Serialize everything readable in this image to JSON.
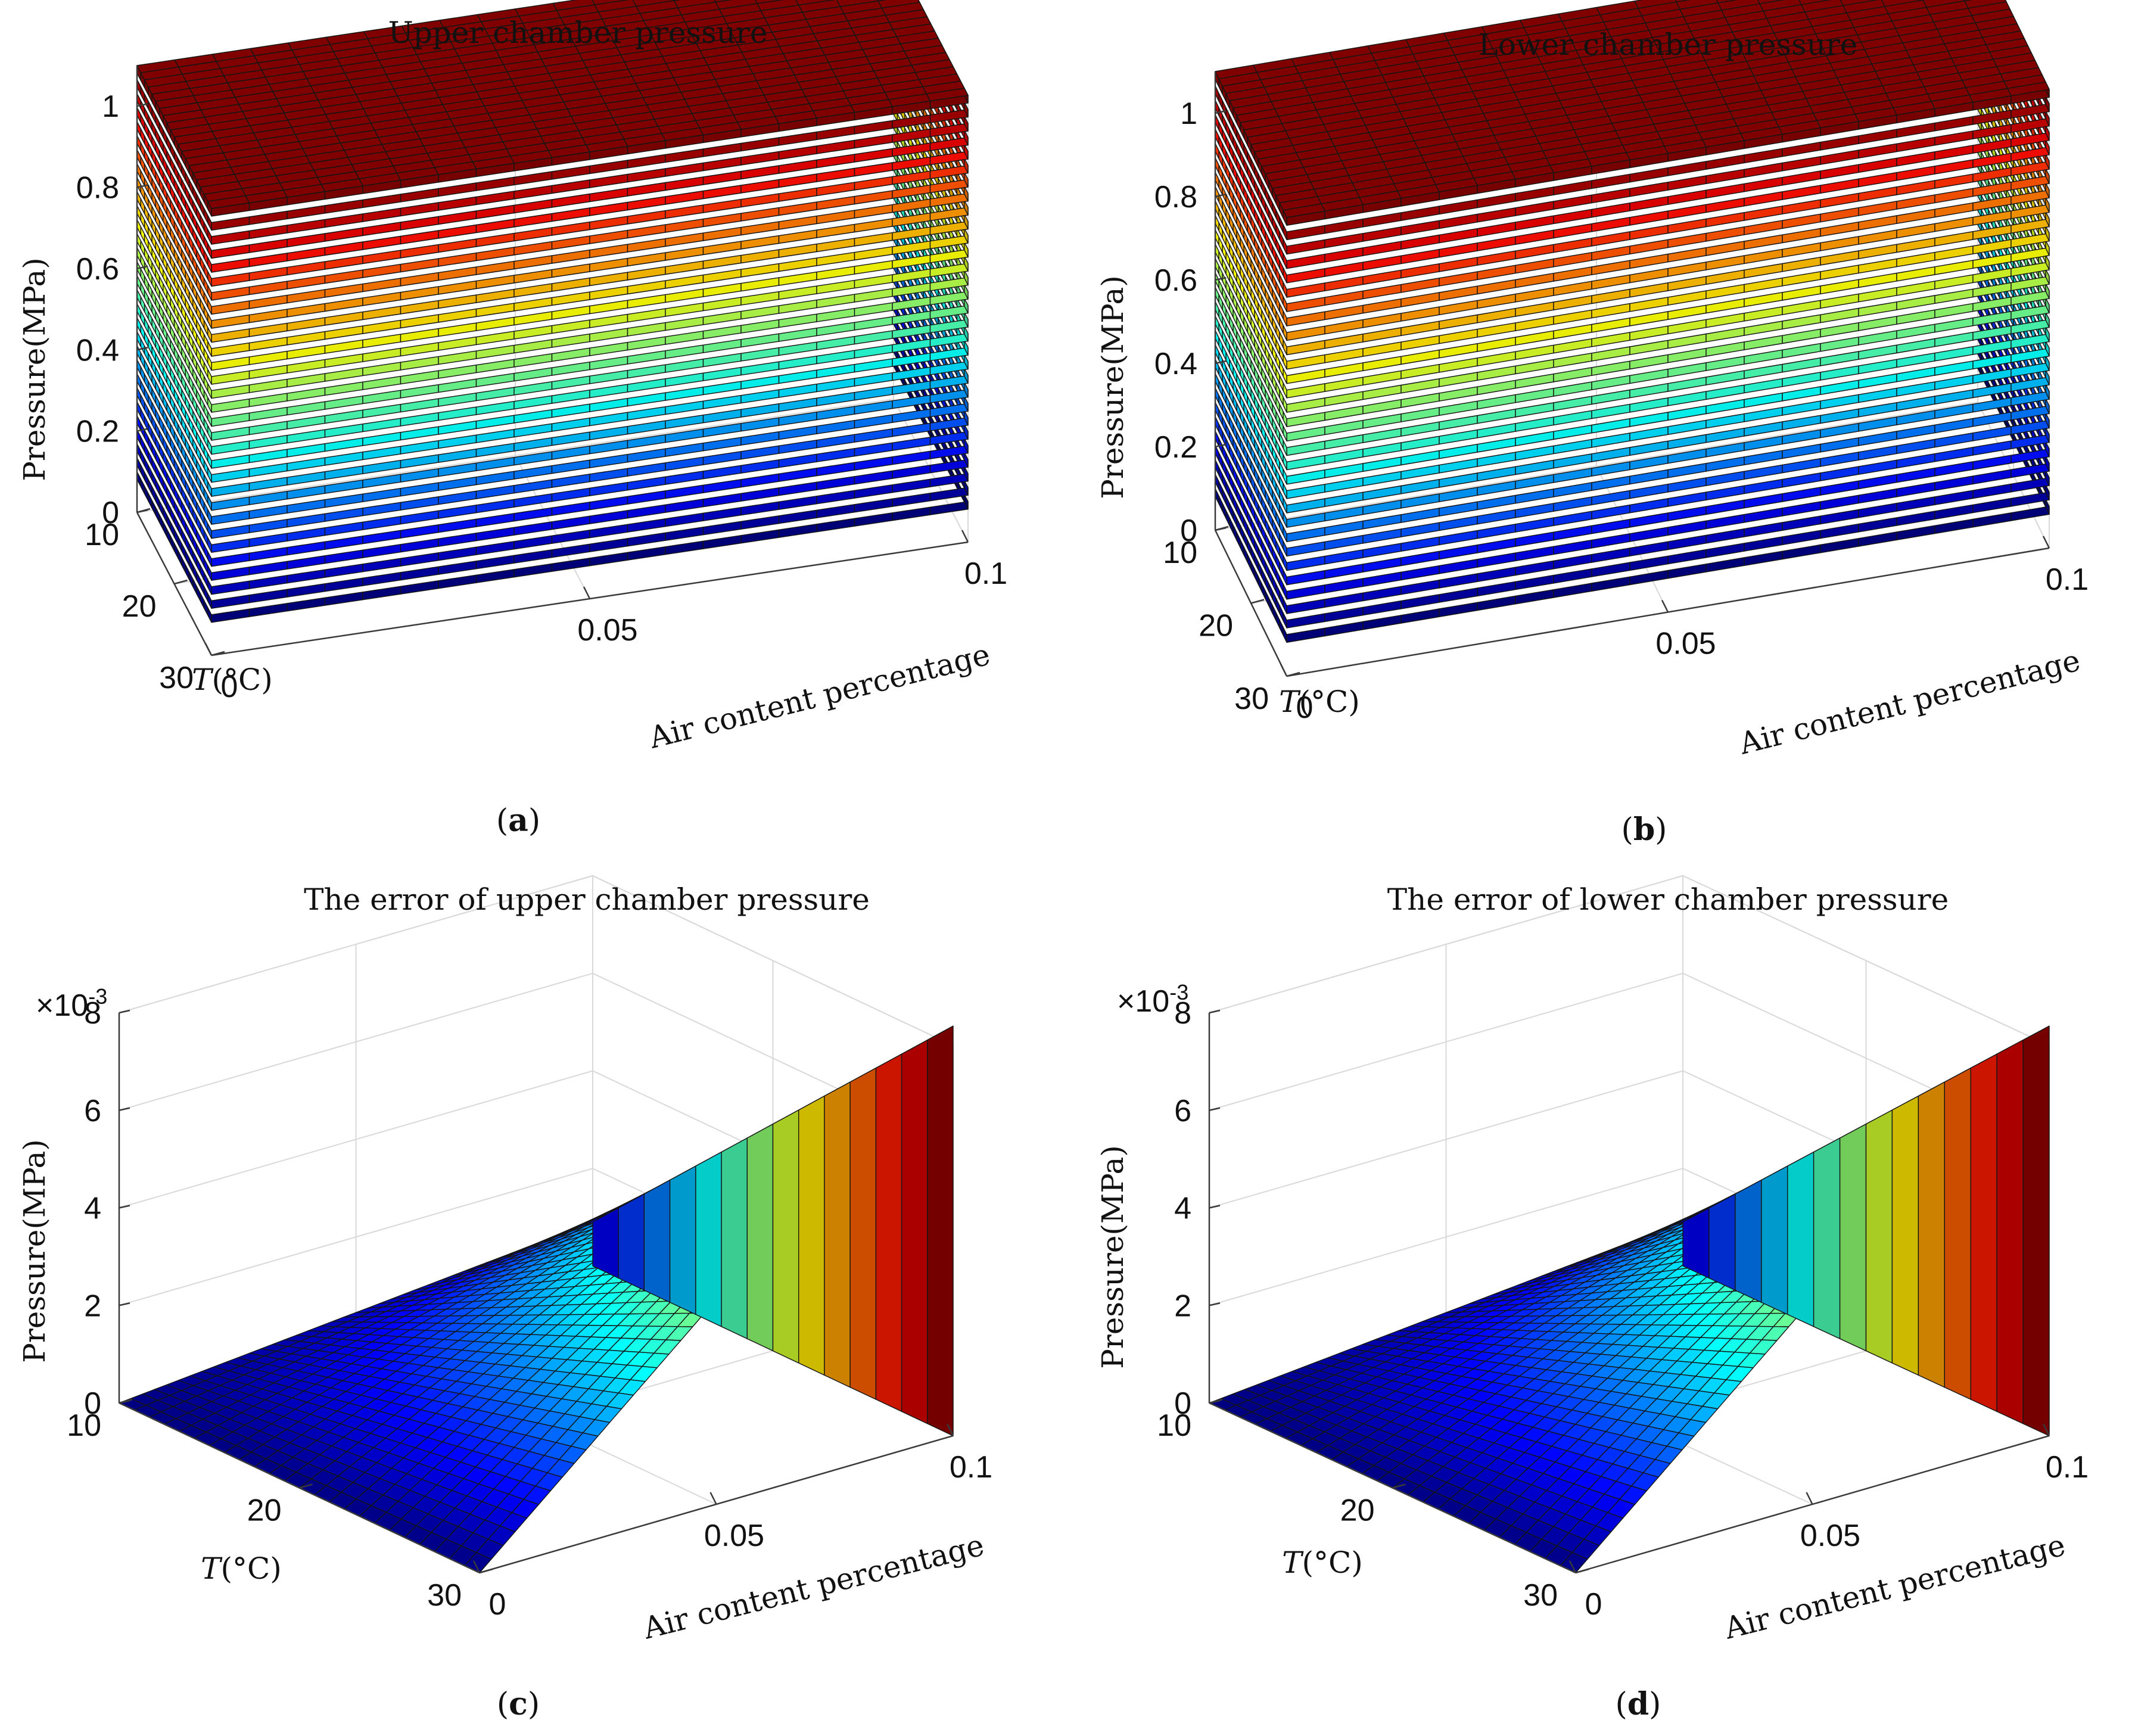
{
  "chart_data": [
    {
      "panel": "a",
      "type": "surface",
      "title": "Upper chamber pressure",
      "caption": "(a)",
      "xlabel": "Air content percentage",
      "ylabel_italic": "T",
      "ylabel_rest": "(°C)",
      "zlabel": "Pressure(MPa)",
      "x_ticks": [
        "0",
        "0.05",
        "0.1"
      ],
      "y_ticks": [
        "10",
        "20",
        "30"
      ],
      "z_ticks": [
        "0",
        "0.2",
        "0.4",
        "0.6",
        "0.8",
        "1"
      ],
      "xlim": [
        0,
        0.1
      ],
      "ylim": [
        10,
        30
      ],
      "zlim": [
        0,
        1.1
      ],
      "z_exponent": "",
      "series": {
        "kind": "stacked-layers",
        "layers": 30,
        "z_min": 0.1,
        "z_max": 1.1
      }
    },
    {
      "panel": "b",
      "type": "surface",
      "title": "Lower chamber pressure",
      "caption": "(b)",
      "xlabel": "Air content percentage",
      "ylabel_italic": "T",
      "ylabel_rest": "(°C)",
      "zlabel": "Pressure(MPa)",
      "x_ticks": [
        "0",
        "0.05",
        "0.1"
      ],
      "y_ticks": [
        "10",
        "20",
        "30"
      ],
      "z_ticks": [
        "0",
        "0.2",
        "0.4",
        "0.6",
        "0.8",
        "1"
      ],
      "xlim": [
        0,
        0.1
      ],
      "ylim": [
        10,
        30
      ],
      "zlim": [
        0,
        1.1
      ],
      "z_exponent": "",
      "series": {
        "kind": "stacked-layers",
        "layers": 30,
        "z_min": 0.1,
        "z_max": 1.1
      }
    },
    {
      "panel": "c",
      "type": "surface",
      "title": "The error of upper chamber pressure",
      "caption": "(c)",
      "xlabel": "Air content percentage",
      "ylabel_italic": "T",
      "ylabel_rest": "(°C)",
      "zlabel": "Pressure(MPa)",
      "x_ticks": [
        "0",
        "0.05",
        "0.1"
      ],
      "y_ticks": [
        "10",
        "20",
        "30"
      ],
      "z_ticks": [
        "0",
        "2",
        "4",
        "6",
        "8"
      ],
      "xlim": [
        0,
        0.1
      ],
      "ylim": [
        10,
        30
      ],
      "zlim": [
        0,
        8
      ],
      "z_exponent": "×10-3",
      "series": {
        "kind": "error-surface",
        "z_at_x0_y10": 0.0,
        "z_at_x0_y30": 0.0,
        "z_at_xmax_y10": 0.9,
        "z_at_xmax_y30": 8.4,
        "z_max_x_y10": 2.5
      }
    },
    {
      "panel": "d",
      "type": "surface",
      "title": "The error of lower chamber pressure",
      "caption": "(d)",
      "xlabel": "Air content percentage",
      "ylabel_italic": "T",
      "ylabel_rest": "(°C)",
      "zlabel": "Pressure(MPa)",
      "x_ticks": [
        "0",
        "0.05",
        "0.1"
      ],
      "y_ticks": [
        "10",
        "20",
        "30"
      ],
      "z_ticks": [
        "0",
        "2",
        "4",
        "6",
        "8"
      ],
      "xlim": [
        0,
        0.1
      ],
      "ylim": [
        10,
        30
      ],
      "zlim": [
        0,
        8
      ],
      "z_exponent": "×10-3",
      "series": {
        "kind": "error-surface",
        "z_at_x0_y10": 0.0,
        "z_at_x0_y30": 0.0,
        "z_at_xmax_y10": 0.9,
        "z_at_xmax_y30": 8.4,
        "z_max_x_y10": 2.5
      }
    }
  ]
}
